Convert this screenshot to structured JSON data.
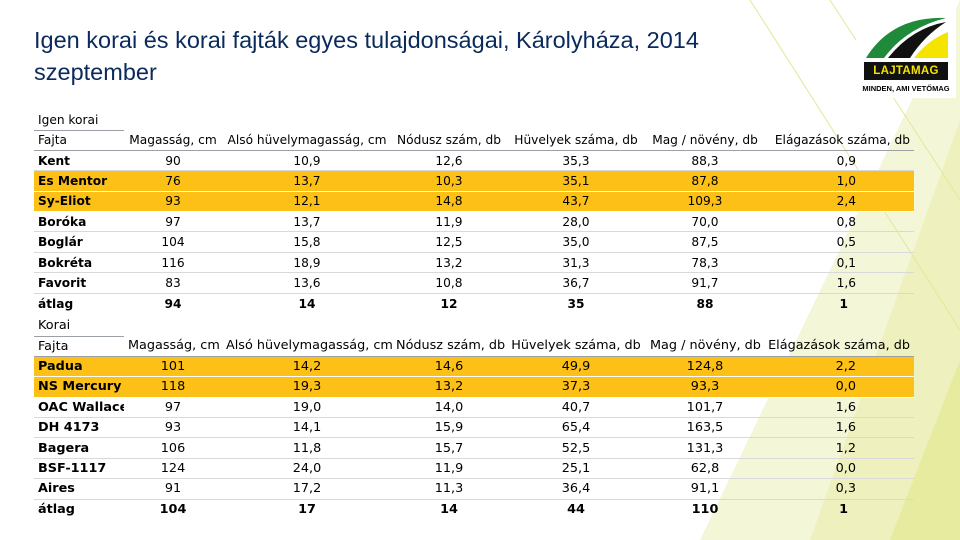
{
  "title": "Igen korai és korai fajták egyes tulajdonságai, Károlyháza, 2014 szeptember",
  "logo": {
    "icon": "lajtamag-logo-icon",
    "brand": "LAJTAMAG",
    "tagline": "MINDEN, AMI VETŐMAG",
    "colors": {
      "green": "#1e8a3a",
      "yellow": "#f5e400",
      "black": "#111111"
    }
  },
  "colors": {
    "highlight": "#fdc016",
    "title": "#0a2a5c",
    "deco": "#e8eb9e"
  },
  "table1": {
    "group": "Igen korai",
    "headers": [
      "Fajta",
      "Magasság, cm",
      "Alsó hüvelymagasság, cm",
      "Nódusz szám, db",
      "Hüvelyek száma, db",
      "Mag / növény, db",
      "Elágazások száma, db"
    ],
    "rows": [
      {
        "cells": [
          "Kent",
          "90",
          "10,9",
          "12,6",
          "35,3",
          "88,3",
          "0,9"
        ],
        "highlight": false
      },
      {
        "cells": [
          "Es Mentor",
          "76",
          "13,7",
          "10,3",
          "35,1",
          "87,8",
          "1,0"
        ],
        "highlight": true
      },
      {
        "cells": [
          "Sy-Eliot",
          "93",
          "12,1",
          "14,8",
          "43,7",
          "109,3",
          "2,4"
        ],
        "highlight": true
      },
      {
        "cells": [
          "Boróka",
          "97",
          "13,7",
          "11,9",
          "28,0",
          "70,0",
          "0,8"
        ],
        "highlight": false
      },
      {
        "cells": [
          "Boglár",
          "104",
          "15,8",
          "12,5",
          "35,0",
          "87,5",
          "0,5"
        ],
        "highlight": false
      },
      {
        "cells": [
          "Bokréta",
          "116",
          "18,9",
          "13,2",
          "31,3",
          "78,3",
          "0,1"
        ],
        "highlight": false
      },
      {
        "cells": [
          "Favorit",
          "83",
          "13,6",
          "10,8",
          "36,7",
          "91,7",
          "1,6"
        ],
        "highlight": false
      }
    ],
    "average": [
      "átlag",
      "94",
      "14",
      "12",
      "35",
      "88",
      "1"
    ]
  },
  "table2": {
    "group": "Korai",
    "headers": [
      "Fajta",
      "Magasság, cm",
      "Alsó hüvelymagasság, cm",
      "Nódusz szám, db",
      "Hüvelyek száma, db",
      "Mag / növény, db",
      "Elágazások száma, db"
    ],
    "rows": [
      {
        "cells": [
          "Padua",
          "101",
          "14,2",
          "14,6",
          "49,9",
          "124,8",
          "2,2"
        ],
        "highlight": true
      },
      {
        "cells": [
          "NS Mercury",
          "118",
          "19,3",
          "13,2",
          "37,3",
          "93,3",
          "0,0"
        ],
        "highlight": true
      },
      {
        "cells": [
          "OAC Wallace",
          "97",
          "19,0",
          "14,0",
          "40,7",
          "101,7",
          "1,6"
        ],
        "highlight": false
      },
      {
        "cells": [
          "DH 4173",
          "93",
          "14,1",
          "15,9",
          "65,4",
          "163,5",
          "1,6"
        ],
        "highlight": false
      },
      {
        "cells": [
          "Bagera",
          "106",
          "11,8",
          "15,7",
          "52,5",
          "131,3",
          "1,2"
        ],
        "highlight": false
      },
      {
        "cells": [
          "BSF-1117",
          "124",
          "24,0",
          "11,9",
          "25,1",
          "62,8",
          "0,0"
        ],
        "highlight": false
      },
      {
        "cells": [
          "Aires",
          "91",
          "17,2",
          "11,3",
          "36,4",
          "91,1",
          "0,3"
        ],
        "highlight": false
      }
    ],
    "average": [
      "átlag",
      "104",
      "17",
      "14",
      "44",
      "110",
      "1"
    ]
  }
}
